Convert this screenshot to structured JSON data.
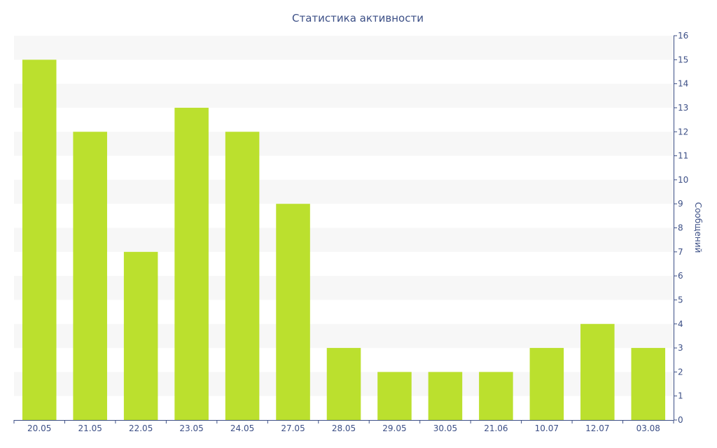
{
  "chart_data": {
    "type": "bar",
    "title": "Статистика активности",
    "xlabel": "",
    "ylabel": "Сообщений",
    "categories": [
      "20.05",
      "21.05",
      "22.05",
      "23.05",
      "24.05",
      "27.05",
      "28.05",
      "29.05",
      "30.05",
      "21.06",
      "10.07",
      "12.07",
      "03.08"
    ],
    "values": [
      15,
      12,
      7,
      13,
      12,
      9,
      3,
      2,
      2,
      2,
      3,
      4,
      3
    ],
    "ylim": [
      0,
      16
    ],
    "y_ticks": [
      0,
      1,
      2,
      3,
      4,
      5,
      6,
      7,
      8,
      9,
      10,
      11,
      12,
      13,
      14,
      15,
      16
    ],
    "y_axis_side": "right",
    "grid": "alternating horizontal bands",
    "legend": "none",
    "colors": {
      "bar": "#bbe02e",
      "band": "#f7f7f7",
      "axis": "#3c4f86",
      "text": "#3c4f86"
    }
  }
}
